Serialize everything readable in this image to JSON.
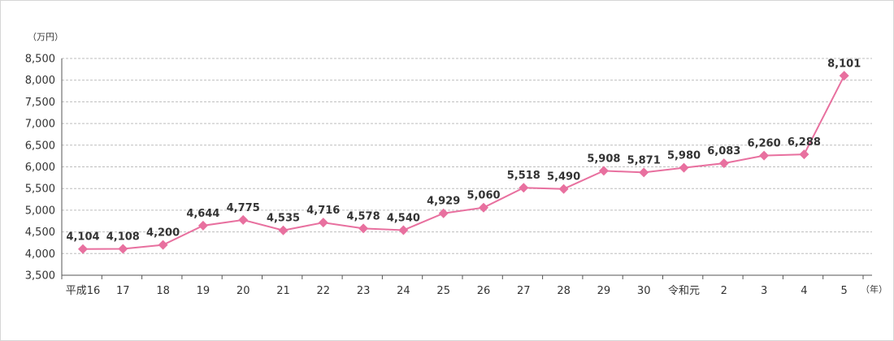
{
  "chart_data": {
    "type": "line",
    "y_unit_label": "（万円）",
    "x_unit_label": "（年）",
    "ylim": [
      3500,
      8500
    ],
    "y_ticks": [
      3500,
      4000,
      4500,
      5000,
      5500,
      6000,
      6500,
      7000,
      7500,
      8000,
      8500
    ],
    "y_tick_labels": [
      "3,500",
      "4,000",
      "4,500",
      "5,000",
      "5,500",
      "6,000",
      "6,500",
      "7,000",
      "7,500",
      "8,000",
      "8,500"
    ],
    "grid": true,
    "categories": [
      "平成16",
      "17",
      "18",
      "19",
      "20",
      "21",
      "22",
      "23",
      "24",
      "25",
      "26",
      "27",
      "28",
      "29",
      "30",
      "令和元",
      "2",
      "3",
      "4",
      "5"
    ],
    "series": [
      {
        "name": "",
        "values": [
          4104,
          4108,
          4200,
          4644,
          4775,
          4535,
          4716,
          4578,
          4540,
          4929,
          5060,
          5518,
          5490,
          5908,
          5871,
          5980,
          6083,
          6260,
          6288,
          8101
        ],
        "data_labels": [
          "4,104",
          "4,108",
          "4,200",
          "4,644",
          "4,775",
          "4,535",
          "4,716",
          "4,578",
          "4,540",
          "4,929",
          "5,060",
          "5,518",
          "5,490",
          "5,908",
          "5,871",
          "5,980",
          "6,083",
          "6,260",
          "6,288",
          "8,101"
        ],
        "color": "#e8709f"
      }
    ]
  },
  "colors": {
    "line": "#e8709f",
    "marker": "#e8709f",
    "grid": "#bdbdbd",
    "axis": "#555555",
    "text": "#333333"
  }
}
